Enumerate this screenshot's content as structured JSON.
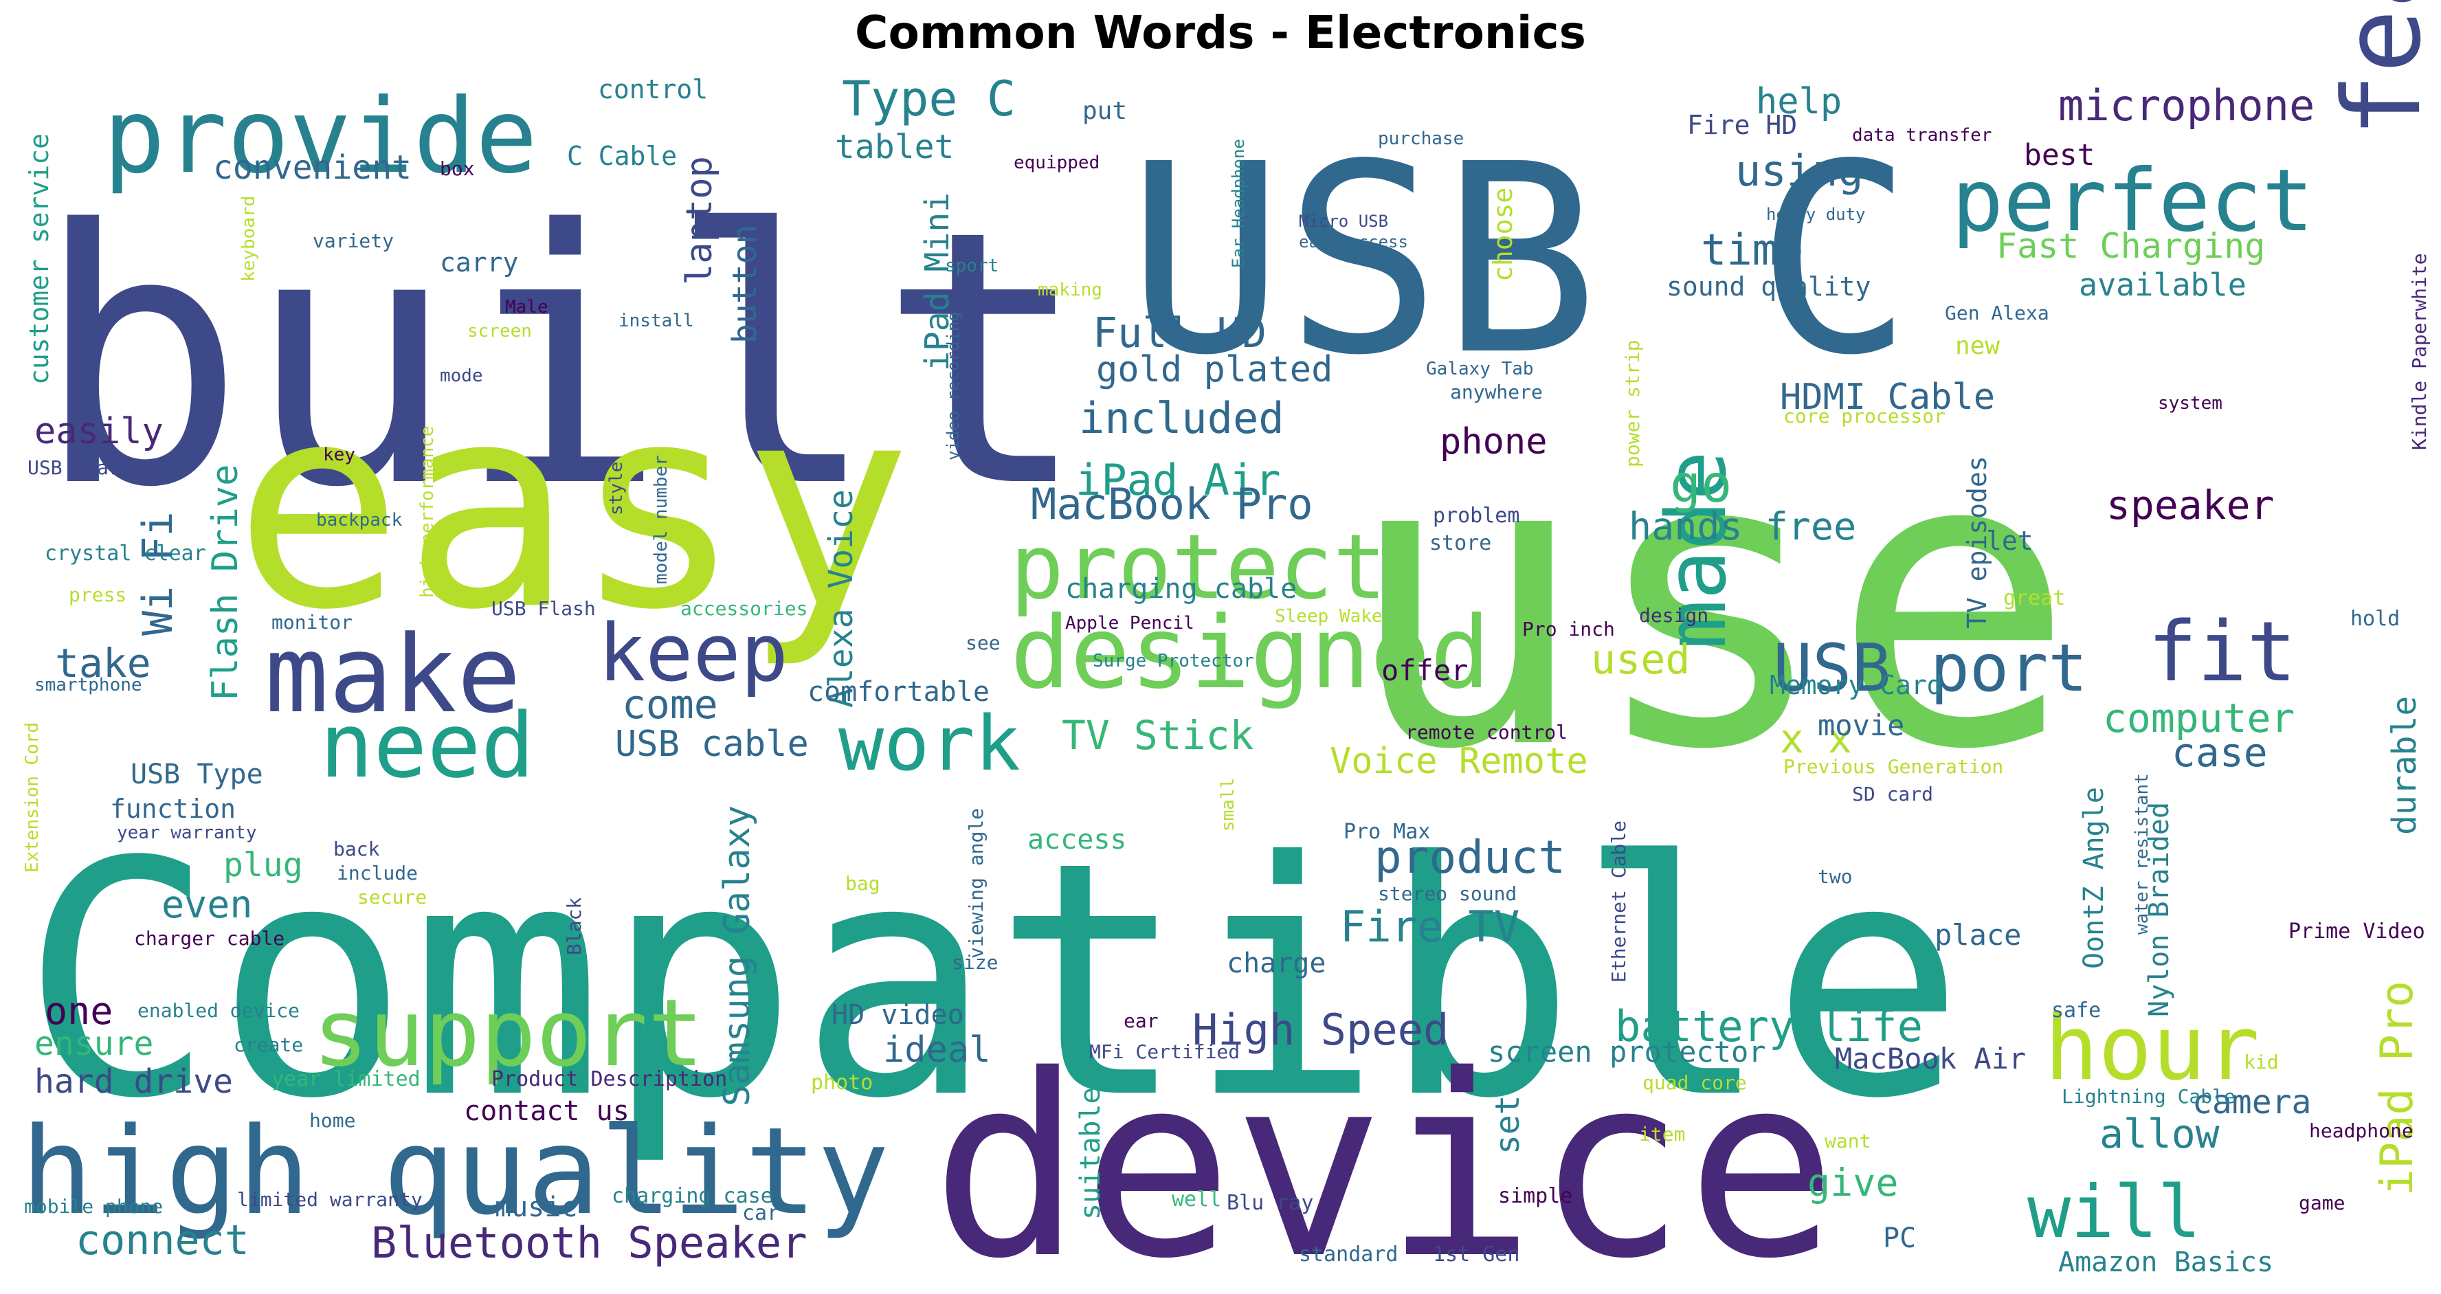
{
  "title": "Common Words - Electronics",
  "palette": [
    "#440154",
    "#482878",
    "#3e4989",
    "#31688e",
    "#26828e",
    "#1f9e89",
    "#35b779",
    "#6ece58",
    "#b5de2b",
    "#fde725"
  ],
  "words": [
    {
      "text": "Compatible",
      "color": "#1f9e89"
    },
    {
      "text": "use",
      "color": "#6ece58"
    },
    {
      "text": "built",
      "color": "#3e4989"
    },
    {
      "text": "USB C",
      "color": "#31688e"
    },
    {
      "text": "easy",
      "color": "#b5de2b"
    },
    {
      "text": "device",
      "color": "#482878"
    },
    {
      "text": "high quality",
      "color": "#31688e"
    },
    {
      "text": "provide",
      "color": "#26828e"
    },
    {
      "text": "feature",
      "color": "#3e4989"
    },
    {
      "text": "perfect",
      "color": "#26828e"
    },
    {
      "text": "make",
      "color": "#3e4989"
    },
    {
      "text": "designed",
      "color": "#6ece58"
    },
    {
      "text": "protect",
      "color": "#6ece58"
    },
    {
      "text": "support",
      "color": "#6ece58"
    },
    {
      "text": "need",
      "color": "#1f9e89"
    },
    {
      "text": "work",
      "color": "#1f9e89"
    },
    {
      "text": "hour",
      "color": "#b5de2b"
    },
    {
      "text": "made",
      "color": "#1f9e89"
    },
    {
      "text": "will",
      "color": "#1f9e89"
    },
    {
      "text": "keep",
      "color": "#3e4989"
    },
    {
      "text": "USB port",
      "color": "#31688e"
    },
    {
      "text": "fit",
      "color": "#3e4989"
    },
    {
      "text": "microphone",
      "color": "#482878"
    },
    {
      "text": "Type C",
      "color": "#26828e"
    },
    {
      "text": "using",
      "color": "#31688e"
    },
    {
      "text": "time",
      "color": "#31688e"
    },
    {
      "text": "Fast Charging",
      "color": "#6ece58"
    },
    {
      "text": "available",
      "color": "#26828e"
    },
    {
      "text": "help",
      "color": "#26828e"
    },
    {
      "text": "best",
      "color": "#440154"
    },
    {
      "text": "Fire HD",
      "color": "#3e4989"
    },
    {
      "text": "sound quality",
      "color": "#31688e"
    },
    {
      "text": "Full HD",
      "color": "#31688e"
    },
    {
      "text": "gold plated",
      "color": "#31688e"
    },
    {
      "text": "included",
      "color": "#31688e"
    },
    {
      "text": "iPad Air",
      "color": "#1f9e89"
    },
    {
      "text": "MacBook Pro",
      "color": "#31688e"
    },
    {
      "text": "HDMI Cable",
      "color": "#31688e"
    },
    {
      "text": "phone",
      "color": "#440154"
    },
    {
      "text": "go",
      "color": "#35b779"
    },
    {
      "text": "hands free",
      "color": "#26828e"
    },
    {
      "text": "speaker",
      "color": "#440154"
    },
    {
      "text": "convenient",
      "color": "#31688e"
    },
    {
      "text": "tablet",
      "color": "#26828e"
    },
    {
      "text": "C Cable",
      "color": "#26828e"
    },
    {
      "text": "control",
      "color": "#26828e"
    },
    {
      "text": "put",
      "color": "#31688e"
    },
    {
      "text": "carry",
      "color": "#31688e"
    },
    {
      "text": "laptop",
      "color": "#3e4989"
    },
    {
      "text": "button",
      "color": "#31688e"
    },
    {
      "text": "iPad Mini",
      "color": "#26828e"
    },
    {
      "text": "Wi Fi",
      "color": "#31688e"
    },
    {
      "text": "Flash Drive",
      "color": "#1f9e89"
    },
    {
      "text": "Alexa Voice",
      "color": "#26828e"
    },
    {
      "text": "Samsung Galaxy",
      "color": "#26828e"
    },
    {
      "text": "easily",
      "color": "#482878"
    },
    {
      "text": "take",
      "color": "#31688e"
    },
    {
      "text": "come",
      "color": "#31688e"
    },
    {
      "text": "comfortable",
      "color": "#31688e"
    },
    {
      "text": "USB cable",
      "color": "#31688e"
    },
    {
      "text": "TV Stick",
      "color": "#35b779"
    },
    {
      "text": "Voice Remote",
      "color": "#b5de2b"
    },
    {
      "text": "used",
      "color": "#b5de2b"
    },
    {
      "text": "x x",
      "color": "#b5de2b"
    },
    {
      "text": "computer",
      "color": "#35b779"
    },
    {
      "text": "case",
      "color": "#31688e"
    },
    {
      "text": "durable",
      "color": "#26828e"
    },
    {
      "text": "Memory Card",
      "color": "#26828e"
    },
    {
      "text": "movie",
      "color": "#31688e"
    },
    {
      "text": "offer",
      "color": "#440154"
    },
    {
      "text": "charging cable",
      "color": "#26828e"
    },
    {
      "text": "product",
      "color": "#31688e"
    },
    {
      "text": "Fire TV",
      "color": "#26828e"
    },
    {
      "text": "High Speed",
      "color": "#3e4989"
    },
    {
      "text": "battery life",
      "color": "#1f9e89"
    },
    {
      "text": "ideal",
      "color": "#31688e"
    },
    {
      "text": "plug",
      "color": "#35b779"
    },
    {
      "text": "even",
      "color": "#26828e"
    },
    {
      "text": "one",
      "color": "#440154"
    },
    {
      "text": "ensure",
      "color": "#35b779"
    },
    {
      "text": "hard drive",
      "color": "#3e4989"
    },
    {
      "text": "connect",
      "color": "#26828e"
    },
    {
      "text": "Bluetooth Speaker",
      "color": "#482878"
    },
    {
      "text": "contact us",
      "color": "#440154"
    },
    {
      "text": "music",
      "color": "#31688e"
    },
    {
      "text": "HD video",
      "color": "#31688e"
    },
    {
      "text": "access",
      "color": "#35b779"
    },
    {
      "text": "charge",
      "color": "#31688e"
    },
    {
      "text": "screen protector",
      "color": "#26828e"
    },
    {
      "text": "MacBook Air",
      "color": "#3e4989"
    },
    {
      "text": "set",
      "color": "#26828e"
    },
    {
      "text": "give",
      "color": "#35b779"
    },
    {
      "text": "allow",
      "color": "#26828e"
    },
    {
      "text": "camera",
      "color": "#31688e"
    },
    {
      "text": "iPad Pro",
      "color": "#b5de2b"
    },
    {
      "text": "place",
      "color": "#31688e"
    },
    {
      "text": "PC",
      "color": "#31688e"
    },
    {
      "text": "Amazon Basics",
      "color": "#26828e"
    },
    {
      "text": "suitable",
      "color": "#1f9e89"
    },
    {
      "text": "Nylon Braided",
      "color": "#26828e"
    },
    {
      "text": "OontZ Angle",
      "color": "#26828e"
    },
    {
      "text": "USB Type",
      "color": "#31688e"
    },
    {
      "text": "function",
      "color": "#31688e"
    },
    {
      "text": "customer service",
      "color": "#1f9e89"
    },
    {
      "text": "TV episodes",
      "color": "#31688e"
    },
    {
      "text": "Kindle Paperwhite",
      "color": "#482878"
    },
    {
      "text": "Gen Alexa",
      "color": "#31688e"
    },
    {
      "text": "new",
      "color": "#b5de2b"
    },
    {
      "text": "etc",
      "color": "#31688e"
    },
    {
      "text": "choose",
      "color": "#b5de2b"
    },
    {
      "text": "Galaxy Tab",
      "color": "#31688e"
    },
    {
      "text": "anywhere",
      "color": "#31688e"
    },
    {
      "text": "core processor",
      "color": "#b5de2b"
    },
    {
      "text": "system",
      "color": "#440154"
    },
    {
      "text": "power strip",
      "color": "#b5de2b"
    },
    {
      "text": "problem",
      "color": "#3e4989"
    },
    {
      "text": "store",
      "color": "#31688e"
    },
    {
      "text": "let",
      "color": "#31688e"
    },
    {
      "text": "design",
      "color": "#482878"
    },
    {
      "text": "great",
      "color": "#b5de2b"
    },
    {
      "text": "hold",
      "color": "#31688e"
    },
    {
      "text": "Pro inch",
      "color": "#440154"
    },
    {
      "text": "remote control",
      "color": "#440154"
    },
    {
      "text": "Previous Generation",
      "color": "#b5de2b"
    },
    {
      "text": "SD card",
      "color": "#3e4989"
    },
    {
      "text": "water resistant",
      "color": "#31688e"
    },
    {
      "text": "two",
      "color": "#31688e"
    },
    {
      "text": "Prime Video",
      "color": "#440154"
    },
    {
      "text": "Ethernet Cable",
      "color": "#3e4989"
    },
    {
      "text": "Pro Max",
      "color": "#31688e"
    },
    {
      "text": "stereo sound",
      "color": "#31688e"
    },
    {
      "text": "safe",
      "color": "#31688e"
    },
    {
      "text": "kid",
      "color": "#b5de2b"
    },
    {
      "text": "ear",
      "color": "#440154"
    },
    {
      "text": "MFi Certified",
      "color": "#3e4989"
    },
    {
      "text": "quad core",
      "color": "#b5de2b"
    },
    {
      "text": "Lightning Cable",
      "color": "#26828e"
    },
    {
      "text": "headphone",
      "color": "#440154"
    },
    {
      "text": "want",
      "color": "#b5de2b"
    },
    {
      "text": "item",
      "color": "#b5de2b"
    },
    {
      "text": "game",
      "color": "#440154"
    },
    {
      "text": "mobile phone",
      "color": "#26828e"
    },
    {
      "text": "limited warranty",
      "color": "#3e4989"
    },
    {
      "text": "charging case",
      "color": "#26828e"
    },
    {
      "text": "car",
      "color": "#31688e"
    },
    {
      "text": "Blu ray",
      "color": "#3e4989"
    },
    {
      "text": "well",
      "color": "#35b779"
    },
    {
      "text": "simple",
      "color": "#440154"
    },
    {
      "text": "standard",
      "color": "#31688e"
    },
    {
      "text": "1st Gen",
      "color": "#3e4989"
    },
    {
      "text": "year limited",
      "color": "#35b779"
    },
    {
      "text": "Product Description",
      "color": "#482878"
    },
    {
      "text": "photo",
      "color": "#b5de2b"
    },
    {
      "text": "home",
      "color": "#31688e"
    },
    {
      "text": "back",
      "color": "#3e4989"
    },
    {
      "text": "include",
      "color": "#31688e"
    },
    {
      "text": "secure",
      "color": "#b5de2b"
    },
    {
      "text": "create",
      "color": "#26828e"
    },
    {
      "text": "enabled device",
      "color": "#26828e"
    },
    {
      "text": "charger cable",
      "color": "#440154"
    },
    {
      "text": "year warranty",
      "color": "#3e4989"
    },
    {
      "text": "Extension Cord",
      "color": "#b5de2b"
    },
    {
      "text": "bag",
      "color": "#b5de2b"
    },
    {
      "text": "Black",
      "color": "#3e4989"
    },
    {
      "text": "viewing angle",
      "color": "#31688e"
    },
    {
      "text": "size",
      "color": "#31688e"
    },
    {
      "text": "small",
      "color": "#b5de2b"
    },
    {
      "text": "Surge Protector",
      "color": "#26828e"
    },
    {
      "text": "Apple Pencil",
      "color": "#440154"
    },
    {
      "text": "Sleep Wake",
      "color": "#b5de2b"
    },
    {
      "text": "see",
      "color": "#31688e"
    },
    {
      "text": "monitor",
      "color": "#31688e"
    },
    {
      "text": "USB Flash",
      "color": "#3e4989"
    },
    {
      "text": "accessories",
      "color": "#35b779"
    },
    {
      "text": "model number",
      "color": "#31688e"
    },
    {
      "text": "high performance",
      "color": "#b5de2b"
    },
    {
      "text": "press",
      "color": "#b5de2b"
    },
    {
      "text": "crystal clear",
      "color": "#26828e"
    },
    {
      "text": "smartphone",
      "color": "#31688e"
    },
    {
      "text": "USB charging",
      "color": "#3e4989"
    },
    {
      "text": "key",
      "color": "#440154"
    },
    {
      "text": "backpack",
      "color": "#31688e"
    },
    {
      "text": "style",
      "color": "#3e4989"
    },
    {
      "text": "mode",
      "color": "#3e4989"
    },
    {
      "text": "screen",
      "color": "#b5de2b"
    },
    {
      "text": "install",
      "color": "#31688e"
    },
    {
      "text": "Male",
      "color": "#440154"
    },
    {
      "text": "variety",
      "color": "#31688e"
    },
    {
      "text": "keyboard",
      "color": "#b5de2b"
    },
    {
      "text": "box",
      "color": "#440154"
    },
    {
      "text": "sport",
      "color": "#26828e"
    },
    {
      "text": "making",
      "color": "#b5de2b"
    },
    {
      "text": "equipped",
      "color": "#440154"
    },
    {
      "text": "purchase",
      "color": "#31688e"
    },
    {
      "text": "Ear Headphone",
      "color": "#26828e"
    },
    {
      "text": "Micro USB",
      "color": "#3e4989"
    },
    {
      "text": "easy access",
      "color": "#31688e"
    },
    {
      "text": "heavy duty",
      "color": "#31688e"
    },
    {
      "text": "data transfer",
      "color": "#440154"
    },
    {
      "text": "video recording",
      "color": "#31688e"
    }
  ]
}
